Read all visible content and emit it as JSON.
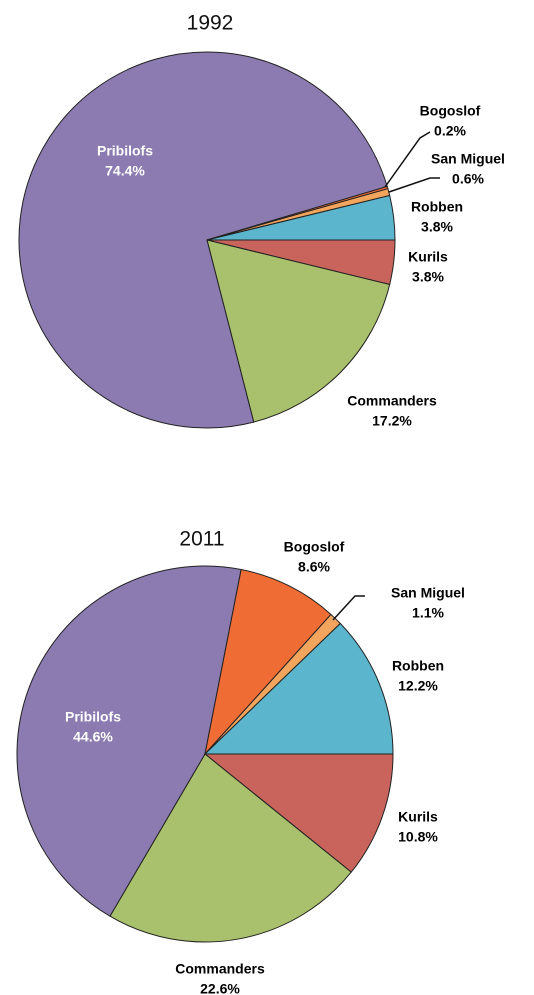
{
  "chart_data": [
    {
      "type": "pie",
      "title": "1992",
      "categories": [
        "Kurils",
        "Commanders",
        "Pribilofs",
        "Bogoslof",
        "San Miguel",
        "Robben"
      ],
      "values": [
        3.8,
        17.2,
        74.4,
        0.2,
        0.6,
        3.8
      ],
      "value_labels": [
        "3.8%",
        "17.2%",
        "74.4%",
        "0.2%",
        "0.6%",
        "3.8%"
      ],
      "colors": [
        "#c8645c",
        "#a9c06c",
        "#8b7bb0",
        "#ef6c35",
        "#f3a55e",
        "#5bb5cc"
      ]
    },
    {
      "type": "pie",
      "title": "2011",
      "categories": [
        "Kurils",
        "Commanders",
        "Pribilofs",
        "Bogoslof",
        "San Miguel",
        "Robben"
      ],
      "values": [
        10.8,
        22.6,
        44.6,
        8.6,
        1.1,
        12.2
      ],
      "value_labels": [
        "10.8%",
        "22.6%",
        "44.6%",
        "8.6%",
        "1.1%",
        "12.2%"
      ],
      "colors": [
        "#c8645c",
        "#a9c06c",
        "#8b7bb0",
        "#ef6c35",
        "#f3a55e",
        "#5bb5cc"
      ]
    }
  ]
}
